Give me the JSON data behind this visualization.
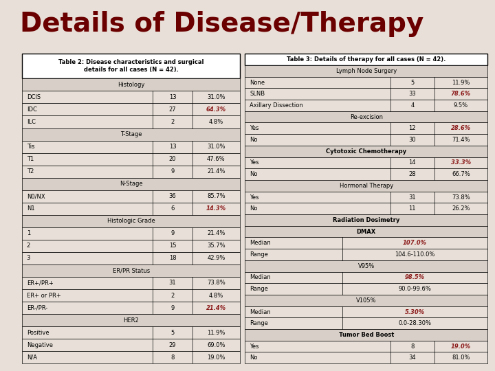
{
  "title": "Details of Disease/Therapy",
  "title_color": "#6B0000",
  "bg_color": "#E8E0D8",
  "table2_title_line1": "Table 2: Disease characteristics and surgical",
  "table2_title_line2": "details for all cases (N = 42).",
  "table3_title": "Table 3: Details of therapy for all cases (N = 42).",
  "table2": {
    "sections": [
      {
        "header": "Histology",
        "header_bold": false,
        "rows": [
          {
            "label": "DCIS",
            "n": "13",
            "pct": "31.0%",
            "pct_red": false
          },
          {
            "label": "IDC",
            "n": "27",
            "pct": "64.3%",
            "pct_red": true
          },
          {
            "label": "ILC",
            "n": "2",
            "pct": "4.8%",
            "pct_red": false
          }
        ]
      },
      {
        "header": "T-Stage",
        "header_bold": false,
        "rows": [
          {
            "label": "Tis",
            "n": "13",
            "pct": "31.0%",
            "pct_red": false
          },
          {
            "label": "T1",
            "n": "20",
            "pct": "47.6%",
            "pct_red": false
          },
          {
            "label": "T2",
            "n": "9",
            "pct": "21.4%",
            "pct_red": false
          }
        ]
      },
      {
        "header": "N-Stage",
        "header_bold": false,
        "rows": [
          {
            "label": "N0/NX",
            "n": "36",
            "pct": "85.7%",
            "pct_red": false
          },
          {
            "label": "N1",
            "n": "6",
            "pct": "14.3%",
            "pct_red": true
          }
        ]
      },
      {
        "header": "Histologic Grade",
        "header_bold": false,
        "rows": [
          {
            "label": "1",
            "n": "9",
            "pct": "21.4%",
            "pct_red": false
          },
          {
            "label": "2",
            "n": "15",
            "pct": "35.7%",
            "pct_red": false
          },
          {
            "label": "3",
            "n": "18",
            "pct": "42.9%",
            "pct_red": false
          }
        ]
      },
      {
        "header": "ER/PR Status",
        "header_bold": false,
        "rows": [
          {
            "label": "ER+/PR+",
            "n": "31",
            "pct": "73.8%",
            "pct_red": false
          },
          {
            "label": "ER+ or PR+",
            "n": "2",
            "pct": "4.8%",
            "pct_red": false
          },
          {
            "label": "ER-/PR-",
            "n": "9",
            "pct": "21.4%",
            "pct_red": true
          }
        ]
      },
      {
        "header": "HER2",
        "header_bold": false,
        "rows": [
          {
            "label": "Positive",
            "n": "5",
            "pct": "11.9%",
            "pct_red": false
          },
          {
            "label": "Negative",
            "n": "29",
            "pct": "69.0%",
            "pct_red": false
          },
          {
            "label": "N/A",
            "n": "8",
            "pct": "19.0%",
            "pct_red": false
          }
        ]
      }
    ]
  },
  "table3": {
    "sections": [
      {
        "header": "Lymph Node Surgery",
        "header_bold": false,
        "sub_header": null,
        "rows": [
          {
            "label": "None",
            "n": "5",
            "pct": "11.9%",
            "pct_red": false,
            "span": false
          },
          {
            "label": "SLNB",
            "n": "33",
            "pct": "78.6%",
            "pct_red": true,
            "span": false
          },
          {
            "label": "Axillary Dissection",
            "n": "4",
            "pct": "9.5%",
            "pct_red": false,
            "span": false
          }
        ]
      },
      {
        "header": "Re-excision",
        "header_bold": false,
        "sub_header": null,
        "rows": [
          {
            "label": "Yes",
            "n": "12",
            "pct": "28.6%",
            "pct_red": true,
            "span": false
          },
          {
            "label": "No",
            "n": "30",
            "pct": "71.4%",
            "pct_red": false,
            "span": false
          }
        ]
      },
      {
        "header": "Cytotoxic Chemotherapy",
        "header_bold": true,
        "sub_header": null,
        "rows": [
          {
            "label": "Yes",
            "n": "14",
            "pct": "33.3%",
            "pct_red": true,
            "span": false
          },
          {
            "label": "No",
            "n": "28",
            "pct": "66.7%",
            "pct_red": false,
            "span": false
          }
        ]
      },
      {
        "header": "Hormonal Therapy",
        "header_bold": false,
        "sub_header": null,
        "rows": [
          {
            "label": "Yes",
            "n": "31",
            "pct": "73.8%",
            "pct_red": false,
            "span": false
          },
          {
            "label": "No",
            "n": "11",
            "pct": "26.2%",
            "pct_red": false,
            "span": false
          }
        ]
      },
      {
        "header": "Radiation Dosimetry",
        "header_bold": true,
        "sub_header": "DMAX",
        "rows": [
          {
            "label": "Median",
            "n": "",
            "pct": "107.0%",
            "pct_red": true,
            "span": true
          },
          {
            "label": "Range",
            "n": "",
            "pct": "104.6-110.0%",
            "pct_red": false,
            "span": true
          }
        ]
      },
      {
        "header": "V95%",
        "header_bold": false,
        "sub_header": null,
        "rows": [
          {
            "label": "Median",
            "n": "",
            "pct": "98.5%",
            "pct_red": true,
            "span": true
          },
          {
            "label": "Range",
            "n": "",
            "pct": "90.0-99.6%",
            "pct_red": false,
            "span": true
          }
        ]
      },
      {
        "header": "V105%",
        "header_bold": false,
        "sub_header": null,
        "rows": [
          {
            "label": "Median",
            "n": "",
            "pct": "5.30%",
            "pct_red": true,
            "span": true
          },
          {
            "label": "Range",
            "n": "",
            "pct": "0.0-28.30%",
            "pct_red": false,
            "span": true
          }
        ]
      },
      {
        "header": "Tumor Bed Boost",
        "header_bold": true,
        "sub_header": null,
        "rows": [
          {
            "label": "Yes",
            "n": "8",
            "pct": "19.0%",
            "pct_red": true,
            "span": false
          },
          {
            "label": "No",
            "n": "34",
            "pct": "81.0%",
            "pct_red": false,
            "span": false
          }
        ]
      }
    ]
  },
  "title_fontsize": 28,
  "table_fontsize": 6.0,
  "row_fontsize": 6.0
}
